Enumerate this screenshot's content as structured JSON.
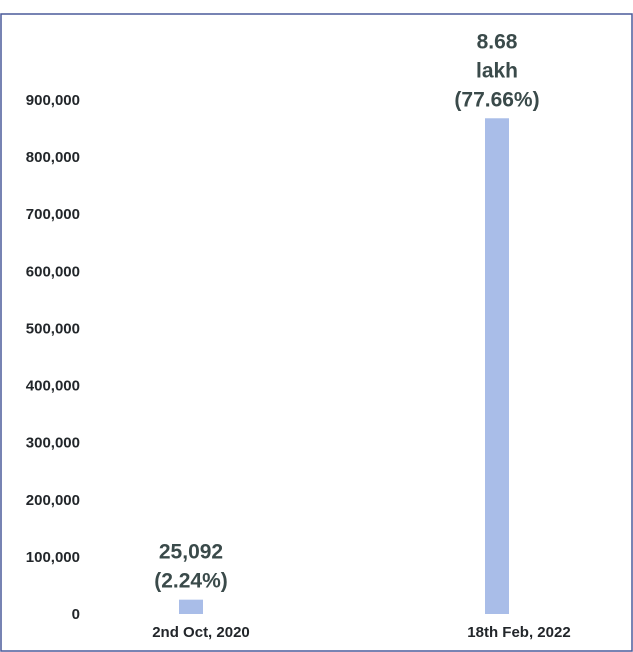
{
  "chart_data": {
    "type": "bar",
    "categories": [
      "2nd Oct, 2020",
      "18th Feb, 2022"
    ],
    "values": [
      25092,
      868000
    ],
    "data_labels": [
      [
        "25,092",
        "(2.24%)"
      ],
      [
        "8.68",
        "lakh",
        "(77.66%)"
      ]
    ],
    "ylim": [
      0,
      900000
    ],
    "yticks": [
      0,
      100000,
      200000,
      300000,
      400000,
      500000,
      600000,
      700000,
      800000,
      900000
    ],
    "ytick_labels": [
      "0",
      "100,000",
      "200,000",
      "300,000",
      "400,000",
      "500,000",
      "600,000",
      "700,000",
      "800,000",
      "900,000"
    ],
    "grid": false,
    "legend": "none",
    "bar_color": "#a9bde8",
    "frame_color": "#4a5a9a"
  }
}
